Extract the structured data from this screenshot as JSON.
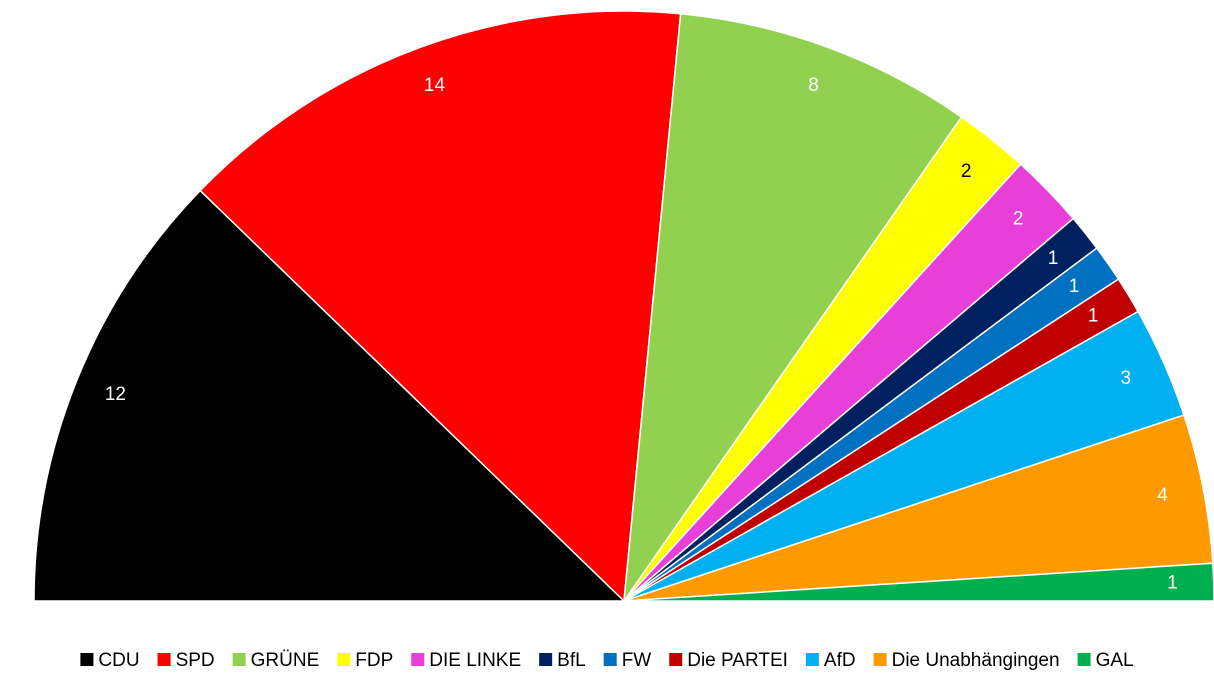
{
  "chart_data": {
    "type": "semicircle-pie",
    "categories": [
      "CDU",
      "SPD",
      "GRÜNE",
      "FDP",
      "DIE LINKE",
      "BfL",
      "FW",
      "Die PARTEI",
      "AfD",
      "Die Unabhängingen",
      "GAL"
    ],
    "values": [
      12,
      14,
      8,
      2,
      2,
      1,
      1,
      1,
      3,
      4,
      1
    ],
    "colors": [
      "#000000",
      "#ff0000",
      "#92d050",
      "#ffff00",
      "#e83fd8",
      "#002060",
      "#0070c0",
      "#c00000",
      "#00b0f0",
      "#ff9900",
      "#00b050"
    ],
    "legend": "bottom"
  }
}
